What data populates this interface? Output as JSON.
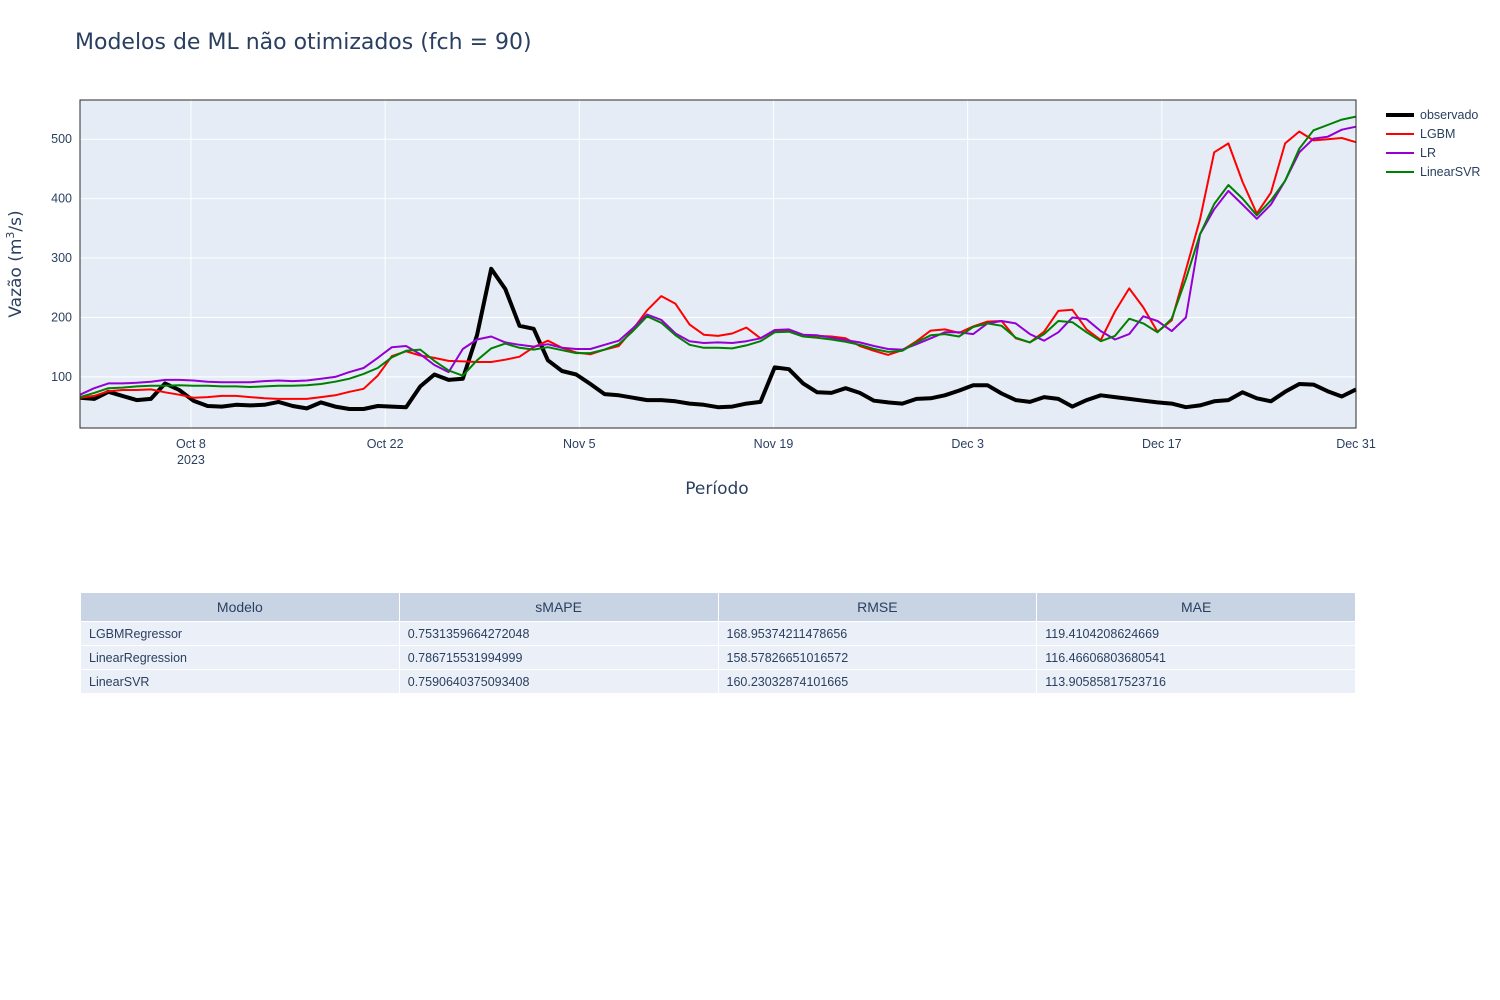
{
  "chart_data": {
    "type": "line",
    "title": "Modelos de ML não otimizados (fch = 90)",
    "xlabel": "Período",
    "ylabel_main": "Vazão (m",
    "ylabel_sup": "3",
    "ylabel_tail": "/s)",
    "x_start": "2023-09-30",
    "x_end": "2023-12-31",
    "ylim": [
      14,
      566
    ],
    "grid": true,
    "legend_position": "top-right",
    "x_ticks": [
      {
        "date": "2023-10-08",
        "label": "Oct 8",
        "sub": "2023"
      },
      {
        "date": "2023-10-22",
        "label": "Oct 22",
        "sub": ""
      },
      {
        "date": "2023-11-05",
        "label": "Nov 5",
        "sub": ""
      },
      {
        "date": "2023-11-19",
        "label": "Nov 19",
        "sub": ""
      },
      {
        "date": "2023-12-03",
        "label": "Dec 3",
        "sub": ""
      },
      {
        "date": "2023-12-17",
        "label": "Dec 17",
        "sub": ""
      },
      {
        "date": "2023-12-31",
        "label": "Dec 31",
        "sub": ""
      }
    ],
    "y_ticks": [
      100,
      200,
      300,
      400,
      500
    ],
    "series": [
      {
        "name": "observado",
        "color": "#000000",
        "width": 4,
        "values": [
          65,
          63,
          75,
          68,
          61,
          63,
          89,
          78,
          60,
          51,
          50,
          53,
          52,
          53,
          58,
          51,
          47,
          57,
          50,
          46,
          46,
          51,
          50,
          49,
          84,
          104,
          95,
          97,
          170,
          282,
          248,
          186,
          181,
          128,
          110,
          104,
          88,
          71,
          69,
          65,
          61,
          61,
          59,
          55,
          53,
          49,
          50,
          55,
          58,
          116,
          113,
          89,
          74,
          73,
          81,
          73,
          60,
          57,
          55,
          63,
          64,
          69,
          77,
          86,
          86,
          72,
          61,
          58,
          66,
          63,
          50,
          61,
          69,
          66,
          63,
          60,
          57,
          55,
          49,
          52,
          59,
          61,
          74,
          64,
          59,
          75,
          88,
          87,
          76,
          67,
          79
        ]
      },
      {
        "name": "LGBM",
        "color": "#ff0000",
        "width": 2,
        "values": [
          65,
          68,
          76,
          78,
          78,
          79,
          74,
          70,
          65,
          66,
          68,
          68,
          66,
          64,
          63,
          63,
          63,
          66,
          69,
          75,
          80,
          102,
          135,
          143,
          136,
          132,
          127,
          126,
          125,
          125,
          129,
          134,
          150,
          161,
          149,
          141,
          138,
          146,
          152,
          180,
          212,
          236,
          223,
          188,
          171,
          169,
          173,
          183,
          165,
          178,
          179,
          170,
          169,
          168,
          165,
          152,
          144,
          137,
          145,
          160,
          178,
          180,
          174,
          185,
          193,
          194,
          165,
          158,
          176,
          211,
          213,
          180,
          162,
          210,
          249,
          217,
          176,
          195,
          280,
          365,
          478,
          493,
          428,
          375,
          410,
          493,
          513,
          498,
          500,
          502,
          495
        ]
      },
      {
        "name": "LR",
        "color": "#9400d3",
        "width": 2,
        "values": [
          70,
          81,
          89,
          89,
          90,
          92,
          95,
          95,
          94,
          92,
          91,
          91,
          91,
          93,
          94,
          93,
          94,
          97,
          100,
          108,
          115,
          132,
          150,
          152,
          138,
          120,
          108,
          147,
          163,
          168,
          158,
          154,
          151,
          155,
          149,
          147,
          147,
          154,
          161,
          182,
          205,
          196,
          173,
          160,
          157,
          158,
          157,
          160,
          165,
          179,
          180,
          171,
          170,
          166,
          162,
          158,
          152,
          147,
          146,
          155,
          165,
          175,
          175,
          172,
          190,
          194,
          190,
          172,
          161,
          175,
          200,
          197,
          177,
          163,
          172,
          202,
          194,
          177,
          200,
          340,
          382,
          413,
          390,
          366,
          390,
          430,
          478,
          501,
          504,
          516,
          521
        ]
      },
      {
        "name": "LinearSVR",
        "color": "#008000",
        "width": 2,
        "values": [
          66,
          73,
          81,
          82,
          84,
          85,
          85,
          86,
          85,
          85,
          84,
          84,
          83,
          84,
          85,
          85,
          86,
          88,
          92,
          97,
          105,
          115,
          133,
          144,
          146,
          127,
          111,
          102,
          128,
          148,
          156,
          149,
          146,
          150,
          145,
          140,
          140,
          146,
          155,
          177,
          202,
          191,
          170,
          154,
          149,
          149,
          148,
          153,
          160,
          175,
          176,
          168,
          166,
          163,
          159,
          154,
          147,
          142,
          144,
          158,
          170,
          172,
          168,
          184,
          190,
          186,
          166,
          158,
          172,
          194,
          192,
          175,
          160,
          169,
          198,
          190,
          175,
          198,
          265,
          340,
          391,
          423,
          400,
          372,
          397,
          430,
          484,
          515,
          524,
          533,
          538
        ]
      }
    ]
  },
  "table": {
    "headers": [
      "Modelo",
      "sMAPE",
      "RMSE",
      "MAE"
    ],
    "rows": [
      [
        "LGBMRegressor",
        "0.7531359664272048",
        "168.95374211478656",
        "119.4104208624669"
      ],
      [
        "LinearRegression",
        "0.786715531994999",
        "158.57826651016572",
        "116.46606803680541"
      ],
      [
        "LinearSVR",
        "0.7590640375093408",
        "160.23032874101665",
        "113.90585817523716"
      ]
    ]
  }
}
